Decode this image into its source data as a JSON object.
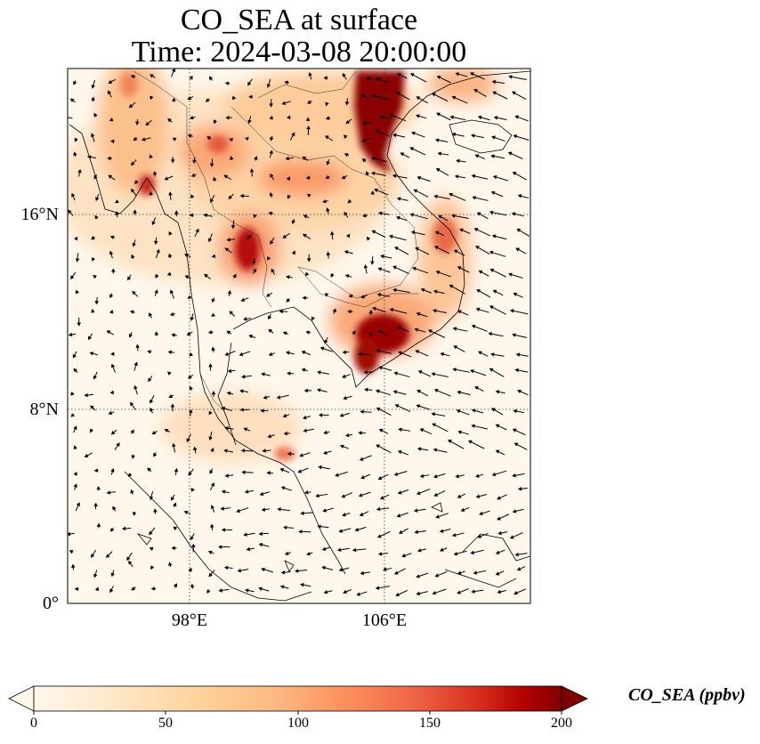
{
  "title_line1": "CO_SEA at surface",
  "title_line2": "Time: 2024-03-08 20:00:00",
  "lat_labels": [
    "16°N",
    "8°N",
    "0°"
  ],
  "lon_labels": [
    "98°E",
    "106°E"
  ],
  "colorbar": {
    "label": "CO_SEA (ppbv)",
    "ticks": [
      "0",
      "50",
      "100",
      "150",
      "200"
    ],
    "min": 0,
    "max": 200,
    "colormap": "OrRd",
    "extend": "both"
  },
  "map": {
    "lon_range": [
      93,
      112
    ],
    "lat_range": [
      0,
      22
    ],
    "gridlines_lon": [
      98,
      106
    ],
    "gridlines_lat": [
      0,
      8,
      16
    ]
  },
  "colors": {
    "low": "#fff7ec",
    "mid": "#fc8d59",
    "high": "#7f0000"
  }
}
